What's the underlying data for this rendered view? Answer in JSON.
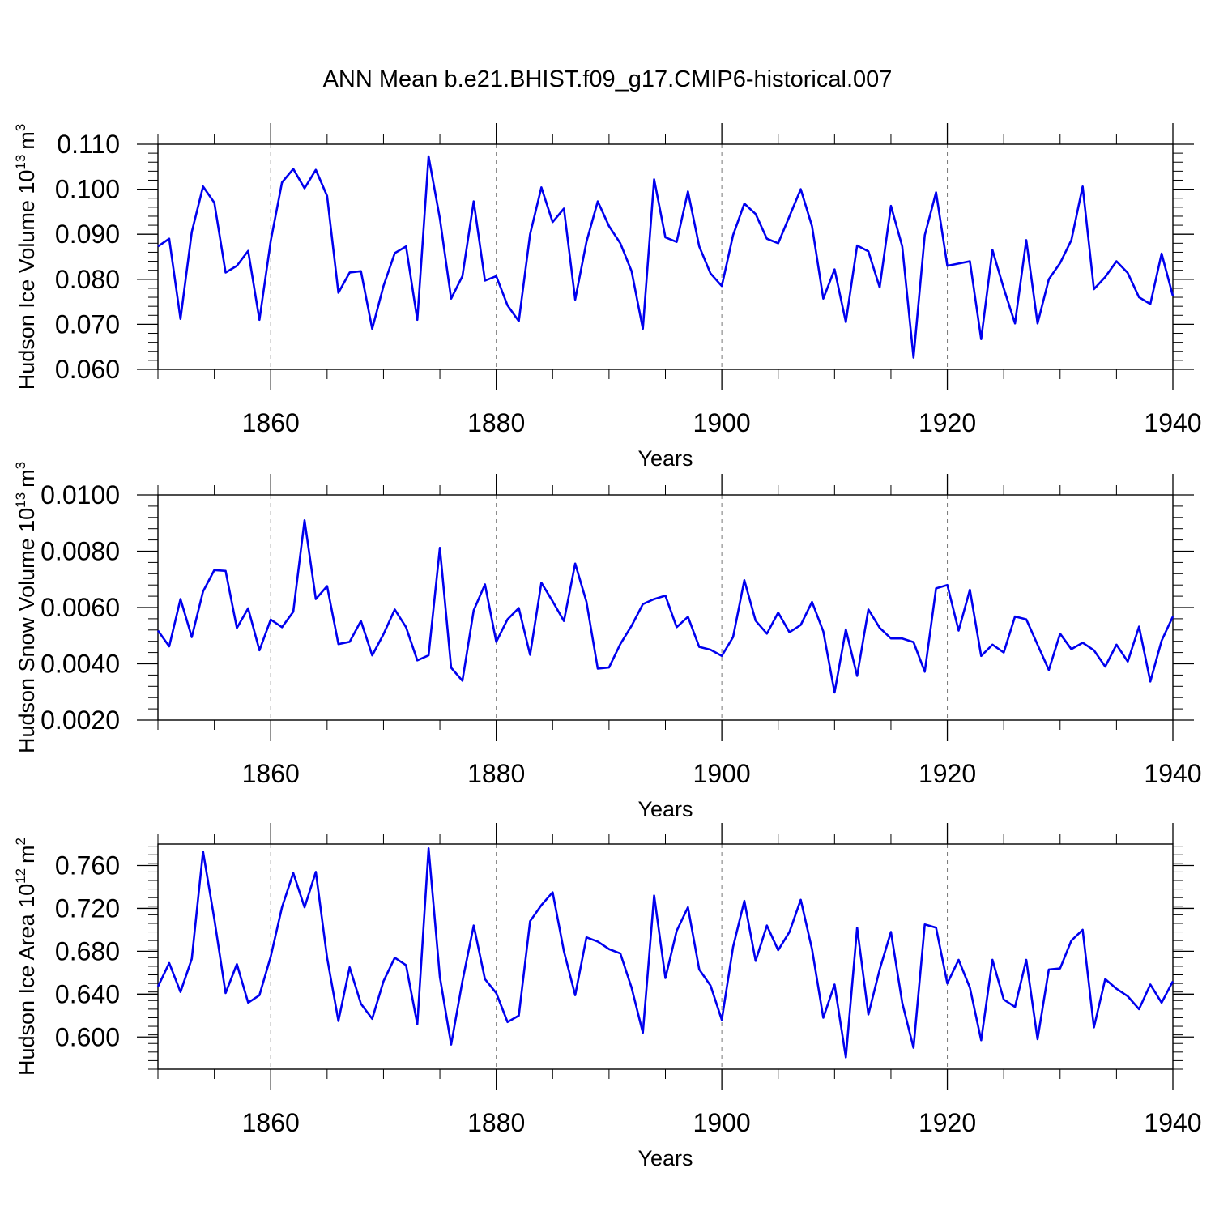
{
  "title": "ANN Mean b.e21.BHIST.f09_g17.CMIP6-historical.007",
  "chart_data": [
    {
      "type": "line",
      "ylabel": "Hudson Ice Volume",
      "ylabel_unit_base": "10",
      "ylabel_unit_exp": "13",
      "ylabel_unit_m": "m",
      "ylabel_unit_mexp": "3",
      "xlabel": "Years",
      "xlim": [
        1850,
        1940
      ],
      "ylim": [
        0.06,
        0.11
      ],
      "yticks": [
        0.06,
        0.07,
        0.08,
        0.09,
        0.1,
        0.11
      ],
      "yticklabels": [
        "0.060",
        "0.070",
        "0.080",
        "0.090",
        "0.100",
        "0.110"
      ],
      "xticks": [
        1860,
        1880,
        1900,
        1920,
        1940
      ],
      "xticklabels": [
        "1860",
        "1880",
        "1900",
        "1920",
        "1940"
      ],
      "gridlines_x": [
        1860,
        1880,
        1900,
        1920
      ],
      "color": "#0000ee",
      "x_start": 1850,
      "values": [
        0.0873,
        0.089,
        0.0712,
        0.0905,
        0.1006,
        0.097,
        0.0815,
        0.083,
        0.0863,
        0.071,
        0.0885,
        0.1015,
        0.1045,
        0.1002,
        0.1043,
        0.0985,
        0.077,
        0.0815,
        0.0818,
        0.069,
        0.0785,
        0.0858,
        0.0873,
        0.071,
        0.1073,
        0.0935,
        0.0757,
        0.0807,
        0.0973,
        0.0797,
        0.0807,
        0.0742,
        0.0707,
        0.09,
        0.1004,
        0.0927,
        0.0957,
        0.0755,
        0.0883,
        0.0973,
        0.0918,
        0.088,
        0.0818,
        0.069,
        0.1022,
        0.0893,
        0.0883,
        0.0995,
        0.0873,
        0.0813,
        0.0785,
        0.0898,
        0.0968,
        0.0945,
        0.089,
        0.088,
        0.094,
        0.1,
        0.0918,
        0.0757,
        0.0822,
        0.0705,
        0.0875,
        0.0862,
        0.0782,
        0.0963,
        0.0873,
        0.0626,
        0.0898,
        0.0993,
        0.083,
        0.0835,
        0.084,
        0.0667,
        0.0865,
        0.078,
        0.0702,
        0.0887,
        0.0702,
        0.08,
        0.0836,
        0.0887,
        0.1006,
        0.0778,
        0.0805,
        0.084,
        0.0814,
        0.076,
        0.0745,
        0.0857,
        0.0763
      ]
    },
    {
      "type": "line",
      "ylabel": "Hudson Snow Volume",
      "ylabel_unit_base": "10",
      "ylabel_unit_exp": "13",
      "ylabel_unit_m": "m",
      "ylabel_unit_mexp": "3",
      "xlabel": "Years",
      "xlim": [
        1850,
        1940
      ],
      "ylim": [
        0.002,
        0.01
      ],
      "yticks": [
        0.002,
        0.004,
        0.006,
        0.008,
        0.01
      ],
      "yticklabels": [
        "0.0020",
        "0.0040",
        "0.0060",
        "0.0080",
        "0.0100"
      ],
      "xticks": [
        1860,
        1880,
        1900,
        1920,
        1940
      ],
      "xticklabels": [
        "1860",
        "1880",
        "1900",
        "1920",
        "1940"
      ],
      "gridlines_x": [
        1860,
        1880,
        1900,
        1920
      ],
      "color": "#0000ee",
      "x_start": 1850,
      "values": [
        0.00518,
        0.00462,
        0.0063,
        0.00495,
        0.00657,
        0.00733,
        0.0073,
        0.00527,
        0.00597,
        0.00448,
        0.00557,
        0.0053,
        0.00585,
        0.0091,
        0.0063,
        0.00676,
        0.0047,
        0.00478,
        0.00552,
        0.0043,
        0.00505,
        0.00593,
        0.0053,
        0.00412,
        0.0043,
        0.00812,
        0.00386,
        0.0034,
        0.0059,
        0.00682,
        0.00478,
        0.00558,
        0.00598,
        0.00432,
        0.00688,
        0.00622,
        0.00552,
        0.00756,
        0.0062,
        0.00383,
        0.00387,
        0.0047,
        0.00535,
        0.00612,
        0.0063,
        0.00642,
        0.0053,
        0.00567,
        0.0046,
        0.0045,
        0.00428,
        0.00495,
        0.00697,
        0.00553,
        0.00507,
        0.00582,
        0.00512,
        0.00538,
        0.0062,
        0.00515,
        0.00298,
        0.00522,
        0.00357,
        0.00593,
        0.00528,
        0.0049,
        0.0049,
        0.00477,
        0.00372,
        0.00668,
        0.0068,
        0.00518,
        0.00663,
        0.00428,
        0.00468,
        0.0044,
        0.00568,
        0.00558,
        0.00468,
        0.00378,
        0.00507,
        0.00452,
        0.00475,
        0.00448,
        0.0039,
        0.00468,
        0.00408,
        0.00532,
        0.00337,
        0.00482,
        0.00568
      ]
    },
    {
      "type": "line",
      "ylabel": "Hudson Ice Area",
      "ylabel_unit_base": "10",
      "ylabel_unit_exp": "12",
      "ylabel_unit_m": "m",
      "ylabel_unit_mexp": "2",
      "xlabel": "Years",
      "xlim": [
        1850,
        1940
      ],
      "ylim": [
        0.57,
        0.78
      ],
      "yticks": [
        0.6,
        0.64,
        0.68,
        0.72,
        0.76
      ],
      "yticklabels": [
        "0.600",
        "0.640",
        "0.680",
        "0.720",
        "0.760"
      ],
      "xticks": [
        1860,
        1880,
        1900,
        1920,
        1940
      ],
      "xticklabels": [
        "1860",
        "1880",
        "1900",
        "1920",
        "1940"
      ],
      "gridlines_x": [
        1860,
        1880,
        1900,
        1920
      ],
      "color": "#0000ee",
      "x_start": 1850,
      "values": [
        0.647,
        0.669,
        0.642,
        0.673,
        0.773,
        0.71,
        0.641,
        0.668,
        0.632,
        0.639,
        0.675,
        0.721,
        0.753,
        0.721,
        0.754,
        0.674,
        0.615,
        0.665,
        0.631,
        0.617,
        0.652,
        0.674,
        0.667,
        0.612,
        0.776,
        0.656,
        0.593,
        0.652,
        0.704,
        0.654,
        0.641,
        0.614,
        0.62,
        0.708,
        0.723,
        0.735,
        0.68,
        0.639,
        0.693,
        0.689,
        0.682,
        0.678,
        0.646,
        0.604,
        0.732,
        0.655,
        0.699,
        0.721,
        0.663,
        0.648,
        0.616,
        0.684,
        0.727,
        0.671,
        0.704,
        0.681,
        0.698,
        0.728,
        0.682,
        0.618,
        0.649,
        0.581,
        0.702,
        0.621,
        0.663,
        0.698,
        0.632,
        0.59,
        0.705,
        0.702,
        0.65,
        0.672,
        0.646,
        0.597,
        0.672,
        0.635,
        0.628,
        0.672,
        0.598,
        0.663,
        0.664,
        0.69,
        0.7,
        0.609,
        0.654,
        0.645,
        0.638,
        0.626,
        0.649,
        0.632,
        0.652
      ]
    }
  ]
}
